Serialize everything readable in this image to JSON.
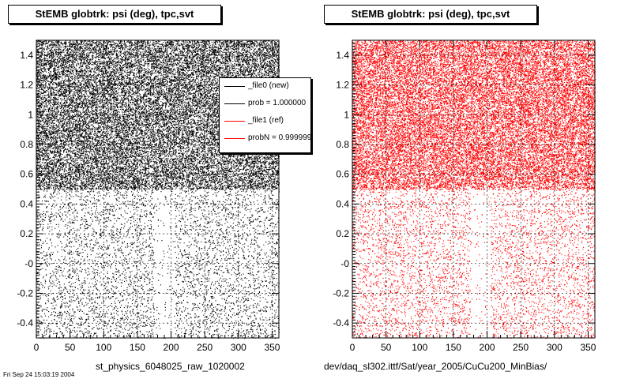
{
  "chart_data": [
    {
      "type": "scatter",
      "title": "StEMB globtrk: psi (deg), tpc,svt",
      "xlabel": "",
      "ylabel": "",
      "xlim": [
        0,
        360
      ],
      "ylim": [
        -0.5,
        1.5
      ],
      "xticks": [
        "0",
        "50",
        "100",
        "150",
        "200",
        "250",
        "300",
        "350"
      ],
      "yticks": [
        "-0.4",
        "-0.2",
        "-0",
        "0.2",
        "0.4",
        "0.6",
        "0.8",
        "1",
        "1.2",
        "1.4"
      ],
      "grid": true,
      "series": [
        {
          "name": "_file0 (new)",
          "color": "#000000",
          "dense_region": {
            "x": [
              0,
              360
            ],
            "y": [
              0.5,
              1.5
            ]
          },
          "sparse_region": {
            "x": [
              0,
              360
            ],
            "y": [
              -0.5,
              0.5
            ]
          },
          "gap_x": [
            175,
            205
          ]
        }
      ],
      "footer": "st_physics_6048025_raw_1020002"
    },
    {
      "type": "scatter",
      "title": "StEMB globtrk: psi (deg), tpc,svt",
      "xlabel": "",
      "ylabel": "",
      "xlim": [
        0,
        360
      ],
      "ylim": [
        -0.5,
        1.5
      ],
      "xticks": [
        "0",
        "50",
        "100",
        "150",
        "200",
        "250",
        "300",
        "350"
      ],
      "yticks": [
        "-0.4",
        "-0.2",
        "-0",
        "0.2",
        "0.4",
        "0.6",
        "0.8",
        "1",
        "1.2",
        "1.4"
      ],
      "grid": true,
      "series": [
        {
          "name": "_file1 (ref)",
          "color": "#ff0000",
          "dense_region": {
            "x": [
              0,
              360
            ],
            "y": [
              0.5,
              1.5
            ]
          },
          "sparse_region": {
            "x": [
              0,
              360
            ],
            "y": [
              -0.5,
              0.5
            ]
          },
          "gap_x": [
            175,
            205
          ]
        }
      ],
      "footer": "dev/daq_sl302.ittf/Sat/year_2005/CuCu200_MinBias/"
    }
  ],
  "legend": {
    "placement": "top-right",
    "entries": [
      {
        "label": "_file0 (new)",
        "color": "#000000"
      },
      {
        "label": "prob = 1.000000",
        "color": "#000000"
      },
      {
        "label": "_file1 (ref)",
        "color": "#ff0000"
      },
      {
        "label": "probN = 0.999999",
        "color": "#ff0000"
      }
    ]
  },
  "date_stamp": "Fri Sep 24 15:03:19 2004"
}
